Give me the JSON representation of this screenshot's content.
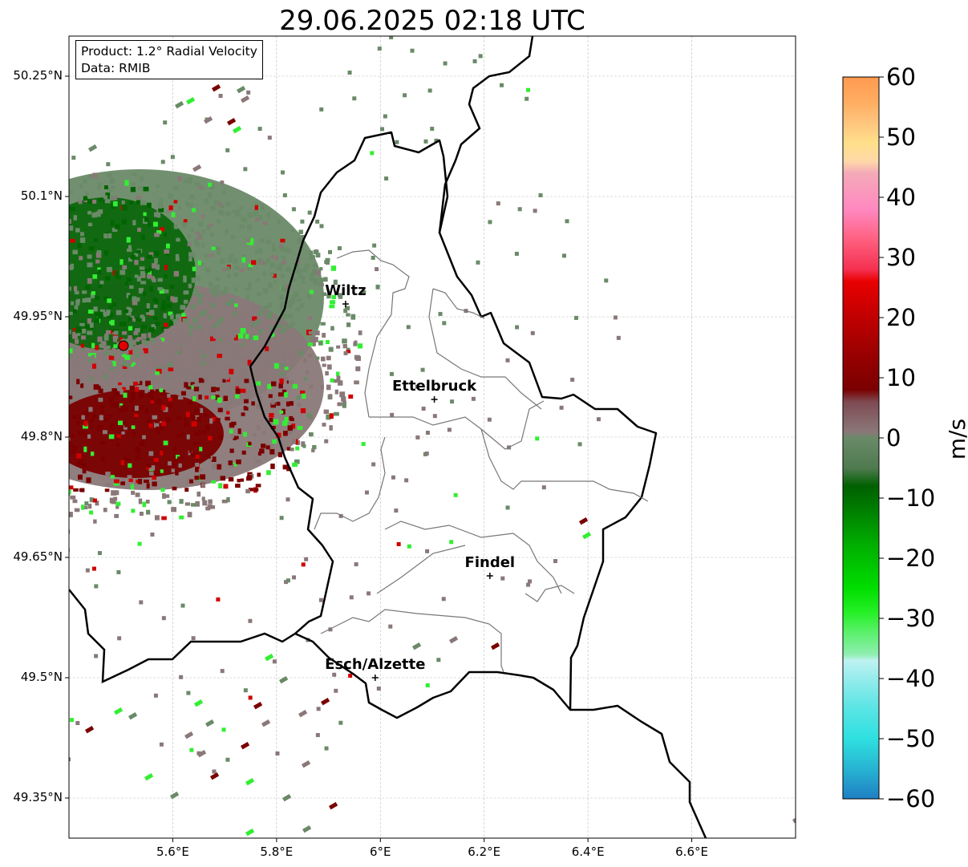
{
  "title": "29.06.2025 02:18 UTC",
  "info_box": {
    "product": "Product: 1.2° Radial Velocity",
    "data": "Data: RMIB"
  },
  "map": {
    "lon_range": [
      5.4,
      6.8
    ],
    "lat_range": [
      49.3,
      50.3
    ],
    "x_ticks": [
      {
        "value": 5.6,
        "label": "5.6°E"
      },
      {
        "value": 5.8,
        "label": "5.8°E"
      },
      {
        "value": 6.0,
        "label": "6°E"
      },
      {
        "value": 6.2,
        "label": "6.2°E"
      },
      {
        "value": 6.4,
        "label": "6.4°E"
      },
      {
        "value": 6.6,
        "label": "6.6°E"
      }
    ],
    "y_ticks": [
      {
        "value": 50.25,
        "label": "50.25°N"
      },
      {
        "value": 50.1,
        "label": "50.1°N"
      },
      {
        "value": 49.95,
        "label": "49.95°N"
      },
      {
        "value": 49.8,
        "label": "49.8°N"
      },
      {
        "value": 49.65,
        "label": "49.65°N"
      },
      {
        "value": 49.5,
        "label": "49.5°N"
      },
      {
        "value": 49.35,
        "label": "49.35°N"
      }
    ],
    "grid": true,
    "radar_site": {
      "lon": 5.505,
      "lat": 49.914
    },
    "cities": [
      {
        "name": "Wiltz",
        "lon": 5.933,
        "lat": 49.966
      },
      {
        "name": "Ettelbruck",
        "lon": 6.104,
        "lat": 49.847
      },
      {
        "name": "Findel",
        "lon": 6.211,
        "lat": 49.627
      },
      {
        "name": "Esch/Alzette",
        "lon": 5.99,
        "lat": 49.5
      }
    ]
  },
  "colorbar": {
    "label": "m/s",
    "min": -60,
    "max": 60,
    "ticks": [
      {
        "value": 60,
        "label": "60"
      },
      {
        "value": 50,
        "label": "50"
      },
      {
        "value": 40,
        "label": "40"
      },
      {
        "value": 30,
        "label": "30"
      },
      {
        "value": 20,
        "label": "20"
      },
      {
        "value": 10,
        "label": "10"
      },
      {
        "value": 0,
        "label": "0"
      },
      {
        "value": -10,
        "label": "−10"
      },
      {
        "value": -20,
        "label": "−20"
      },
      {
        "value": -30,
        "label": "−30"
      },
      {
        "value": -40,
        "label": "−40"
      },
      {
        "value": -50,
        "label": "−50"
      },
      {
        "value": -60,
        "label": "−60"
      }
    ],
    "color_stops": [
      {
        "value": -60,
        "color": "#1f7fc4"
      },
      {
        "value": -55,
        "color": "#27b4d2"
      },
      {
        "value": -50,
        "color": "#2ee0e0"
      },
      {
        "value": -45,
        "color": "#5ae4e4"
      },
      {
        "value": -40,
        "color": "#96ecec"
      },
      {
        "value": -37,
        "color": "#bff2f2"
      },
      {
        "value": -36,
        "color": "#90eeb0"
      },
      {
        "value": -32,
        "color": "#55f065"
      },
      {
        "value": -29,
        "color": "#25f025"
      },
      {
        "value": -25,
        "color": "#00dd00"
      },
      {
        "value": -18,
        "color": "#00b000"
      },
      {
        "value": -12,
        "color": "#007e00"
      },
      {
        "value": -8,
        "color": "#006000"
      },
      {
        "value": -5,
        "color": "#4f7a4f"
      },
      {
        "value": 0,
        "color": "#6a8a68"
      },
      {
        "value": 1,
        "color": "#8a7878"
      },
      {
        "value": 6,
        "color": "#7e4a52"
      },
      {
        "value": 8,
        "color": "#7a0000"
      },
      {
        "value": 14,
        "color": "#9a0000"
      },
      {
        "value": 20,
        "color": "#c00000"
      },
      {
        "value": 26,
        "color": "#e80000"
      },
      {
        "value": 28,
        "color": "#f53050"
      },
      {
        "value": 33,
        "color": "#ff6080"
      },
      {
        "value": 38,
        "color": "#ff88c0"
      },
      {
        "value": 44,
        "color": "#f4aab8"
      },
      {
        "value": 46,
        "color": "#ffd8a8"
      },
      {
        "value": 49,
        "color": "#ffe08a"
      },
      {
        "value": 52,
        "color": "#ffc880"
      },
      {
        "value": 56,
        "color": "#ffac60"
      },
      {
        "value": 60,
        "color": "#ff9a50"
      }
    ]
  },
  "colors": {
    "border": "#000000",
    "canton": "#777777",
    "grid": "#bbbbbb",
    "radar_marker": "#e00000",
    "velocity_green_dark": "#006400",
    "velocity_green_gray": "#6a8a68",
    "velocity_brown_gray": "#8a7878",
    "velocity_dark_red": "#7a0000",
    "velocity_bright_green": "#33ee33",
    "velocity_red": "#d00000"
  }
}
